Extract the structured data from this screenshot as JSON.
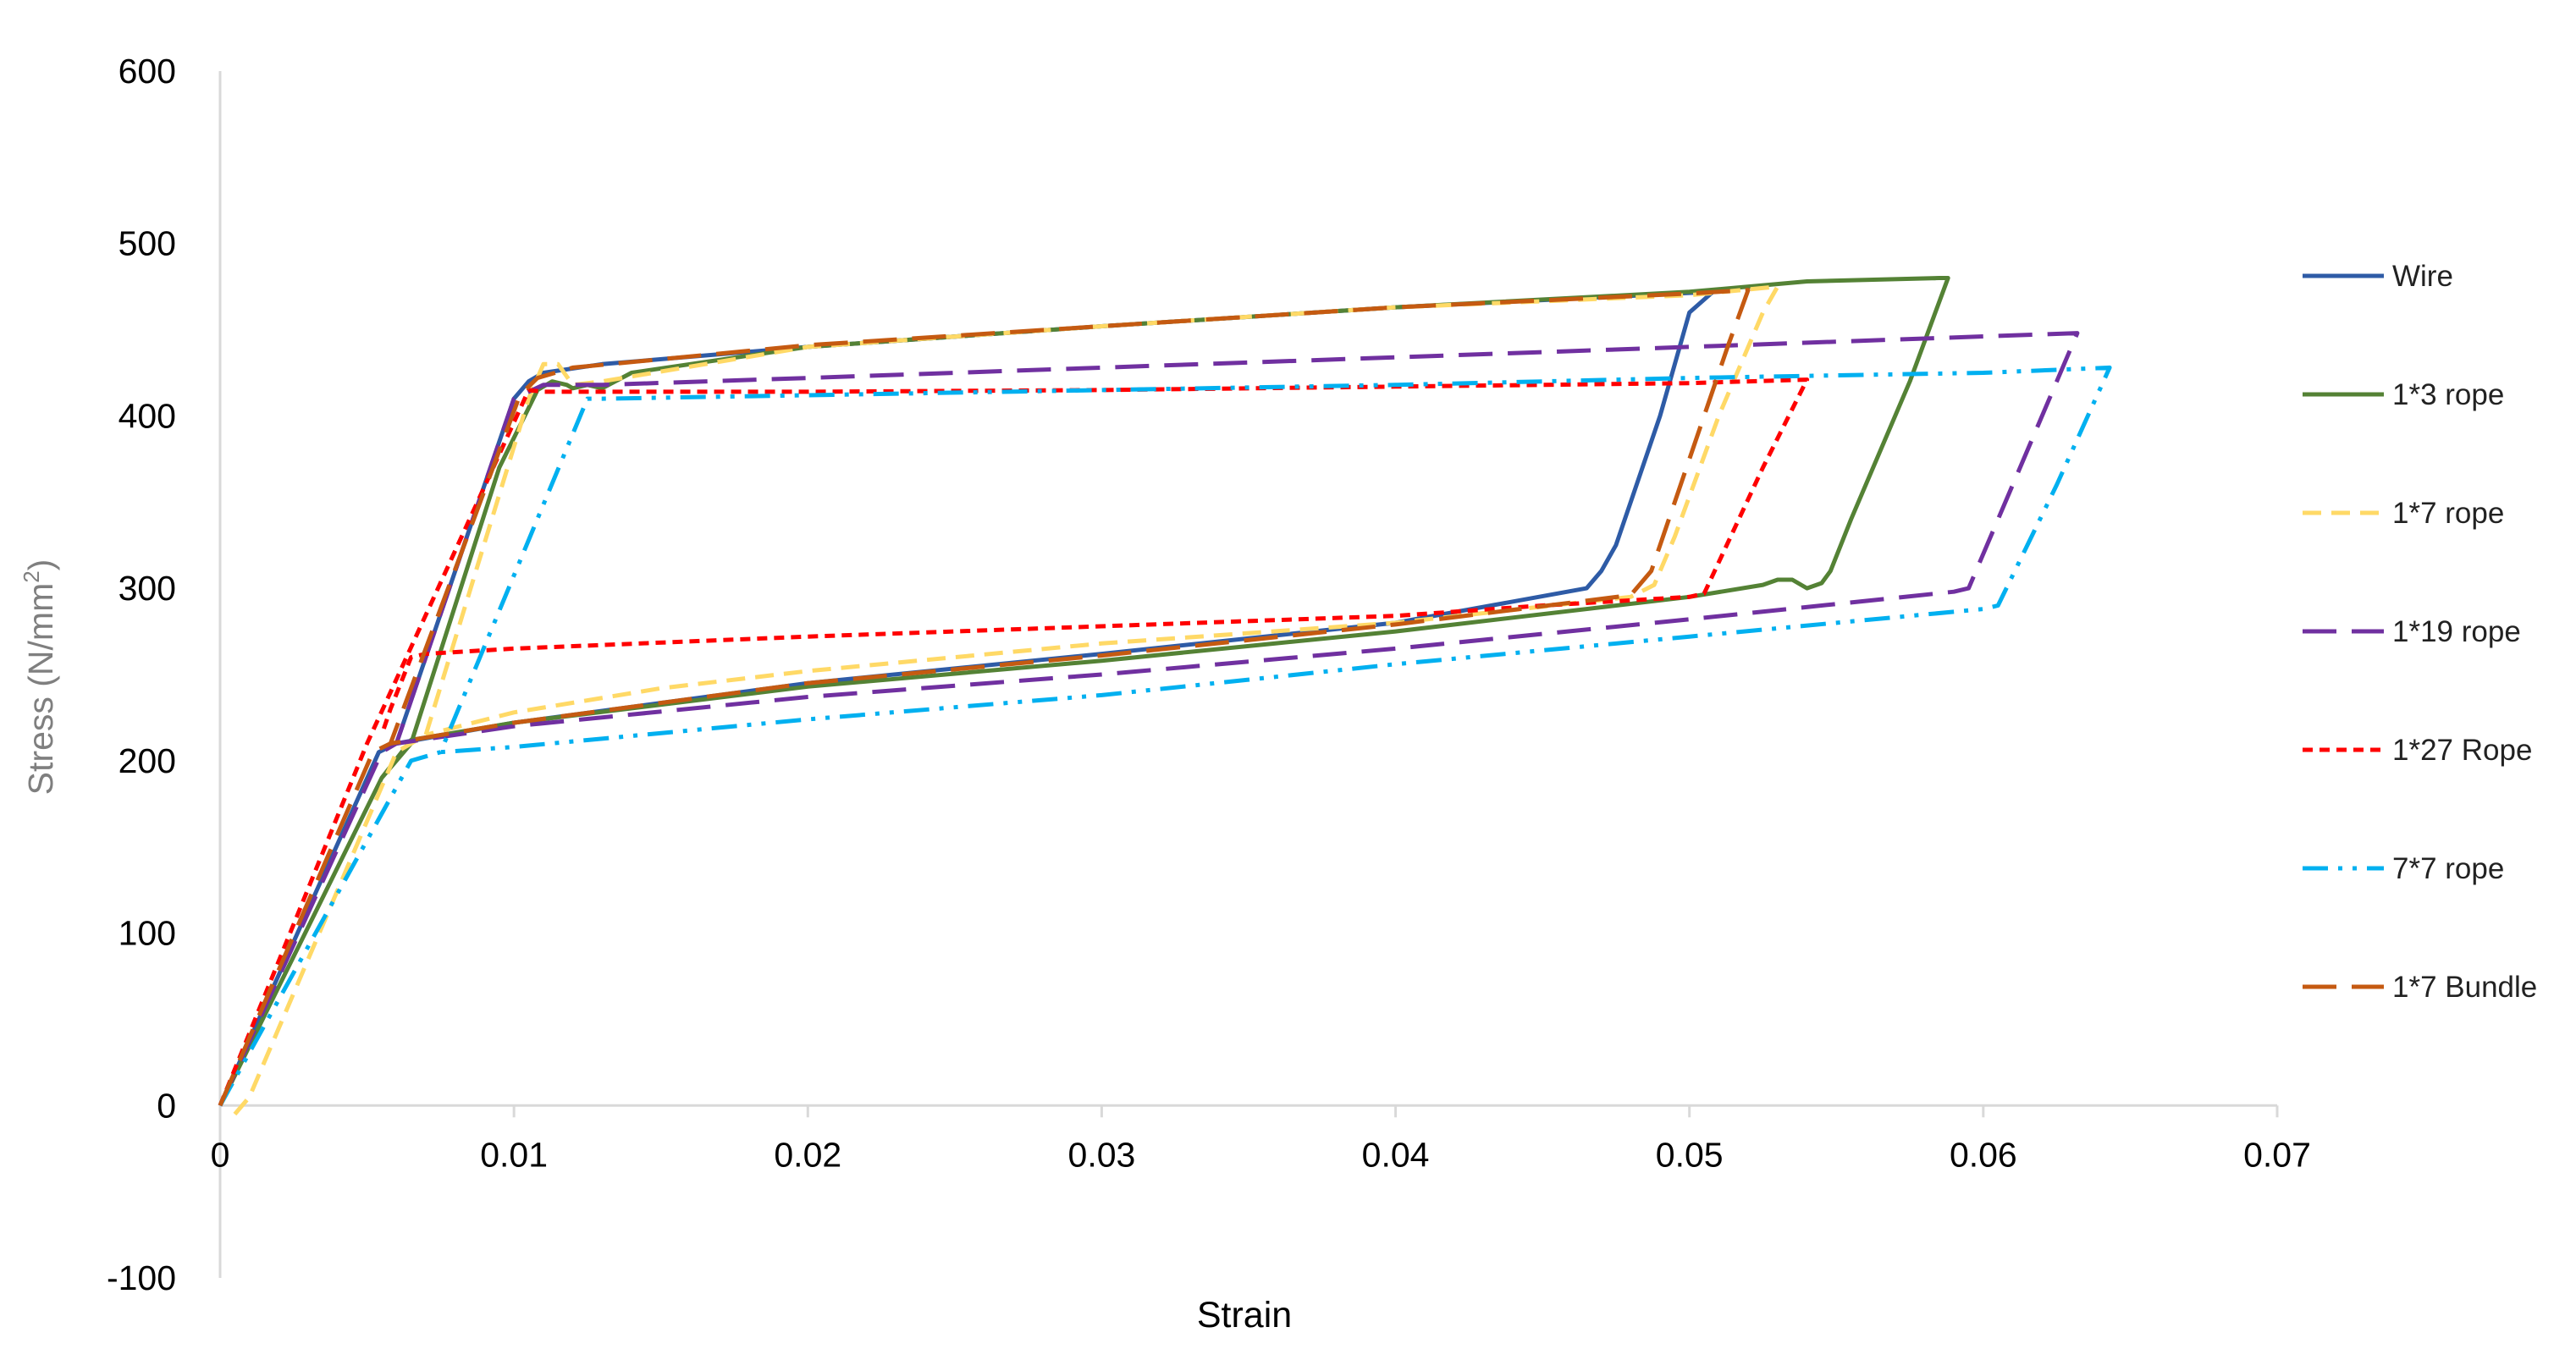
{
  "chart_data": {
    "type": "line",
    "title": "",
    "xlabel": "Strain",
    "ylabel": {
      "prefix": "Stress (N/mm",
      "superscript": "2",
      "suffix": ")"
    },
    "xlim": [
      0,
      0.07
    ],
    "ylim": [
      -100,
      600
    ],
    "x_ticks": [
      {
        "value": 0,
        "label": "0"
      },
      {
        "value": 0.01,
        "label": "0.01"
      },
      {
        "value": 0.02,
        "label": "0.02"
      },
      {
        "value": 0.03,
        "label": "0.03"
      },
      {
        "value": 0.04,
        "label": "0.04"
      },
      {
        "value": 0.05,
        "label": "0.05"
      },
      {
        "value": 0.06,
        "label": "0.06"
      },
      {
        "value": 0.07,
        "label": "0.07"
      }
    ],
    "y_ticks": [
      {
        "value": -100,
        "label": "-100"
      },
      {
        "value": 0,
        "label": "0"
      },
      {
        "value": 100,
        "label": "100"
      },
      {
        "value": 200,
        "label": "200"
      },
      {
        "value": 300,
        "label": "300"
      },
      {
        "value": 400,
        "label": "400"
      },
      {
        "value": 500,
        "label": "500"
      },
      {
        "value": 600,
        "label": "600"
      }
    ],
    "grid": false,
    "legend_position": "right",
    "series": [
      {
        "name": "Wire",
        "color": "#2e5ba6",
        "dash": "solid",
        "points": [
          [
            0,
            0
          ],
          [
            0.0054,
            205
          ],
          [
            0.006,
            210
          ],
          [
            0.01,
            410
          ],
          [
            0.0105,
            420
          ],
          [
            0.011,
            425
          ],
          [
            0.013,
            430
          ],
          [
            0.02,
            440
          ],
          [
            0.03,
            452
          ],
          [
            0.04,
            463
          ],
          [
            0.0508,
            472
          ],
          [
            0.05,
            460
          ],
          [
            0.0495,
            430
          ],
          [
            0.049,
            400
          ],
          [
            0.048,
            350
          ],
          [
            0.0475,
            325
          ],
          [
            0.047,
            310
          ],
          [
            0.0465,
            300
          ],
          [
            0.04,
            280
          ],
          [
            0.03,
            262
          ],
          [
            0.02,
            245
          ],
          [
            0.01,
            222
          ],
          [
            0.006,
            210
          ],
          [
            0.0054,
            205
          ]
        ]
      },
      {
        "name": "1*3 rope",
        "color": "#548235",
        "dash": "solid",
        "points": [
          [
            0,
            0
          ],
          [
            0.0055,
            190
          ],
          [
            0.0065,
            210
          ],
          [
            0.0095,
            370
          ],
          [
            0.0108,
            415
          ],
          [
            0.0113,
            420
          ],
          [
            0.0118,
            418
          ],
          [
            0.012,
            416
          ],
          [
            0.0125,
            418
          ],
          [
            0.013,
            416
          ],
          [
            0.014,
            425
          ],
          [
            0.02,
            440
          ],
          [
            0.03,
            452
          ],
          [
            0.04,
            463
          ],
          [
            0.05,
            472
          ],
          [
            0.054,
            478
          ],
          [
            0.0585,
            480
          ],
          [
            0.0588,
            480
          ],
          [
            0.0575,
            420
          ],
          [
            0.0555,
            340
          ],
          [
            0.0548,
            310
          ],
          [
            0.0545,
            303
          ],
          [
            0.054,
            300
          ],
          [
            0.0535,
            305
          ],
          [
            0.053,
            305
          ],
          [
            0.0525,
            302
          ],
          [
            0.05,
            295
          ],
          [
            0.04,
            275
          ],
          [
            0.03,
            258
          ],
          [
            0.02,
            243
          ],
          [
            0.01,
            222
          ],
          [
            0.0065,
            212
          ],
          [
            0.0055,
            190
          ]
        ]
      },
      {
        "name": "1*7 rope",
        "color": "#ffd966",
        "dash": "dash",
        "points": [
          [
            0.0005,
            -5
          ],
          [
            0.001,
            5
          ],
          [
            0.006,
            205
          ],
          [
            0.007,
            215
          ],
          [
            0.0105,
            410
          ],
          [
            0.011,
            430
          ],
          [
            0.0115,
            430
          ],
          [
            0.012,
            418
          ],
          [
            0.013,
            420
          ],
          [
            0.02,
            440
          ],
          [
            0.03,
            452
          ],
          [
            0.04,
            463
          ],
          [
            0.05,
            470
          ],
          [
            0.053,
            475
          ],
          [
            0.0525,
            460
          ],
          [
            0.051,
            400
          ],
          [
            0.0495,
            330
          ],
          [
            0.0488,
            302
          ],
          [
            0.048,
            295
          ],
          [
            0.04,
            280
          ],
          [
            0.03,
            268
          ],
          [
            0.02,
            252
          ],
          [
            0.015,
            242
          ],
          [
            0.01,
            228
          ],
          [
            0.007,
            215
          ]
        ]
      },
      {
        "name": "1*19 rope",
        "color": "#7030a0",
        "dash": "longdash",
        "points": [
          [
            0,
            0
          ],
          [
            0.0055,
            205
          ],
          [
            0.006,
            210
          ],
          [
            0.01,
            410
          ],
          [
            0.011,
            418
          ],
          [
            0.013,
            418
          ],
          [
            0.02,
            422
          ],
          [
            0.03,
            428
          ],
          [
            0.04,
            434
          ],
          [
            0.05,
            440
          ],
          [
            0.0632,
            448
          ],
          [
            0.0625,
            420
          ],
          [
            0.061,
            360
          ],
          [
            0.0595,
            300
          ],
          [
            0.059,
            298
          ],
          [
            0.05,
            282
          ],
          [
            0.04,
            265
          ],
          [
            0.03,
            250
          ],
          [
            0.02,
            237
          ],
          [
            0.01,
            220
          ],
          [
            0.006,
            210
          ]
        ]
      },
      {
        "name": "1*27 Rope",
        "color": "#ff0000",
        "dash": "dot",
        "points": [
          [
            0,
            0
          ],
          [
            0.005,
            210
          ],
          [
            0.0105,
            415
          ],
          [
            0.011,
            414
          ],
          [
            0.02,
            414
          ],
          [
            0.03,
            415
          ],
          [
            0.04,
            417
          ],
          [
            0.05,
            419
          ],
          [
            0.054,
            421
          ],
          [
            0.0525,
            370
          ],
          [
            0.0505,
            297
          ],
          [
            0.05,
            295
          ],
          [
            0.045,
            290
          ],
          [
            0.04,
            284
          ],
          [
            0.03,
            278
          ],
          [
            0.02,
            272
          ],
          [
            0.01,
            265
          ],
          [
            0.007,
            262
          ],
          [
            0.0065,
            260
          ],
          [
            0.0058,
            230
          ],
          [
            0.0055,
            215
          ]
        ]
      },
      {
        "name": "7*7 rope",
        "color": "#00b0f0",
        "dash": "dashdotdot",
        "points": [
          [
            0,
            0
          ],
          [
            0.0065,
            200
          ],
          [
            0.0075,
            205
          ],
          [
            0.0125,
            410
          ],
          [
            0.013,
            410
          ],
          [
            0.02,
            412
          ],
          [
            0.03,
            415
          ],
          [
            0.04,
            418
          ],
          [
            0.05,
            422
          ],
          [
            0.06,
            425
          ],
          [
            0.0643,
            428
          ],
          [
            0.0625,
            360
          ],
          [
            0.0605,
            290
          ],
          [
            0.06,
            288
          ],
          [
            0.05,
            272
          ],
          [
            0.04,
            256
          ],
          [
            0.03,
            238
          ],
          [
            0.02,
            224
          ],
          [
            0.01,
            208
          ],
          [
            0.0075,
            205
          ]
        ]
      },
      {
        "name": "1*7 Bundle",
        "color": "#c55a11",
        "dash": "longdash",
        "points": [
          [
            0,
            0
          ],
          [
            0.0052,
            205
          ],
          [
            0.0058,
            210
          ],
          [
            0.0102,
            412
          ],
          [
            0.0108,
            422
          ],
          [
            0.012,
            428
          ],
          [
            0.02,
            441
          ],
          [
            0.03,
            452
          ],
          [
            0.04,
            463
          ],
          [
            0.05,
            471
          ],
          [
            0.052,
            473
          ],
          [
            0.0513,
            440
          ],
          [
            0.0497,
            360
          ],
          [
            0.0487,
            310
          ],
          [
            0.048,
            296
          ],
          [
            0.04,
            279
          ],
          [
            0.03,
            261
          ],
          [
            0.02,
            245
          ],
          [
            0.01,
            222
          ],
          [
            0.0058,
            210
          ]
        ]
      }
    ]
  }
}
